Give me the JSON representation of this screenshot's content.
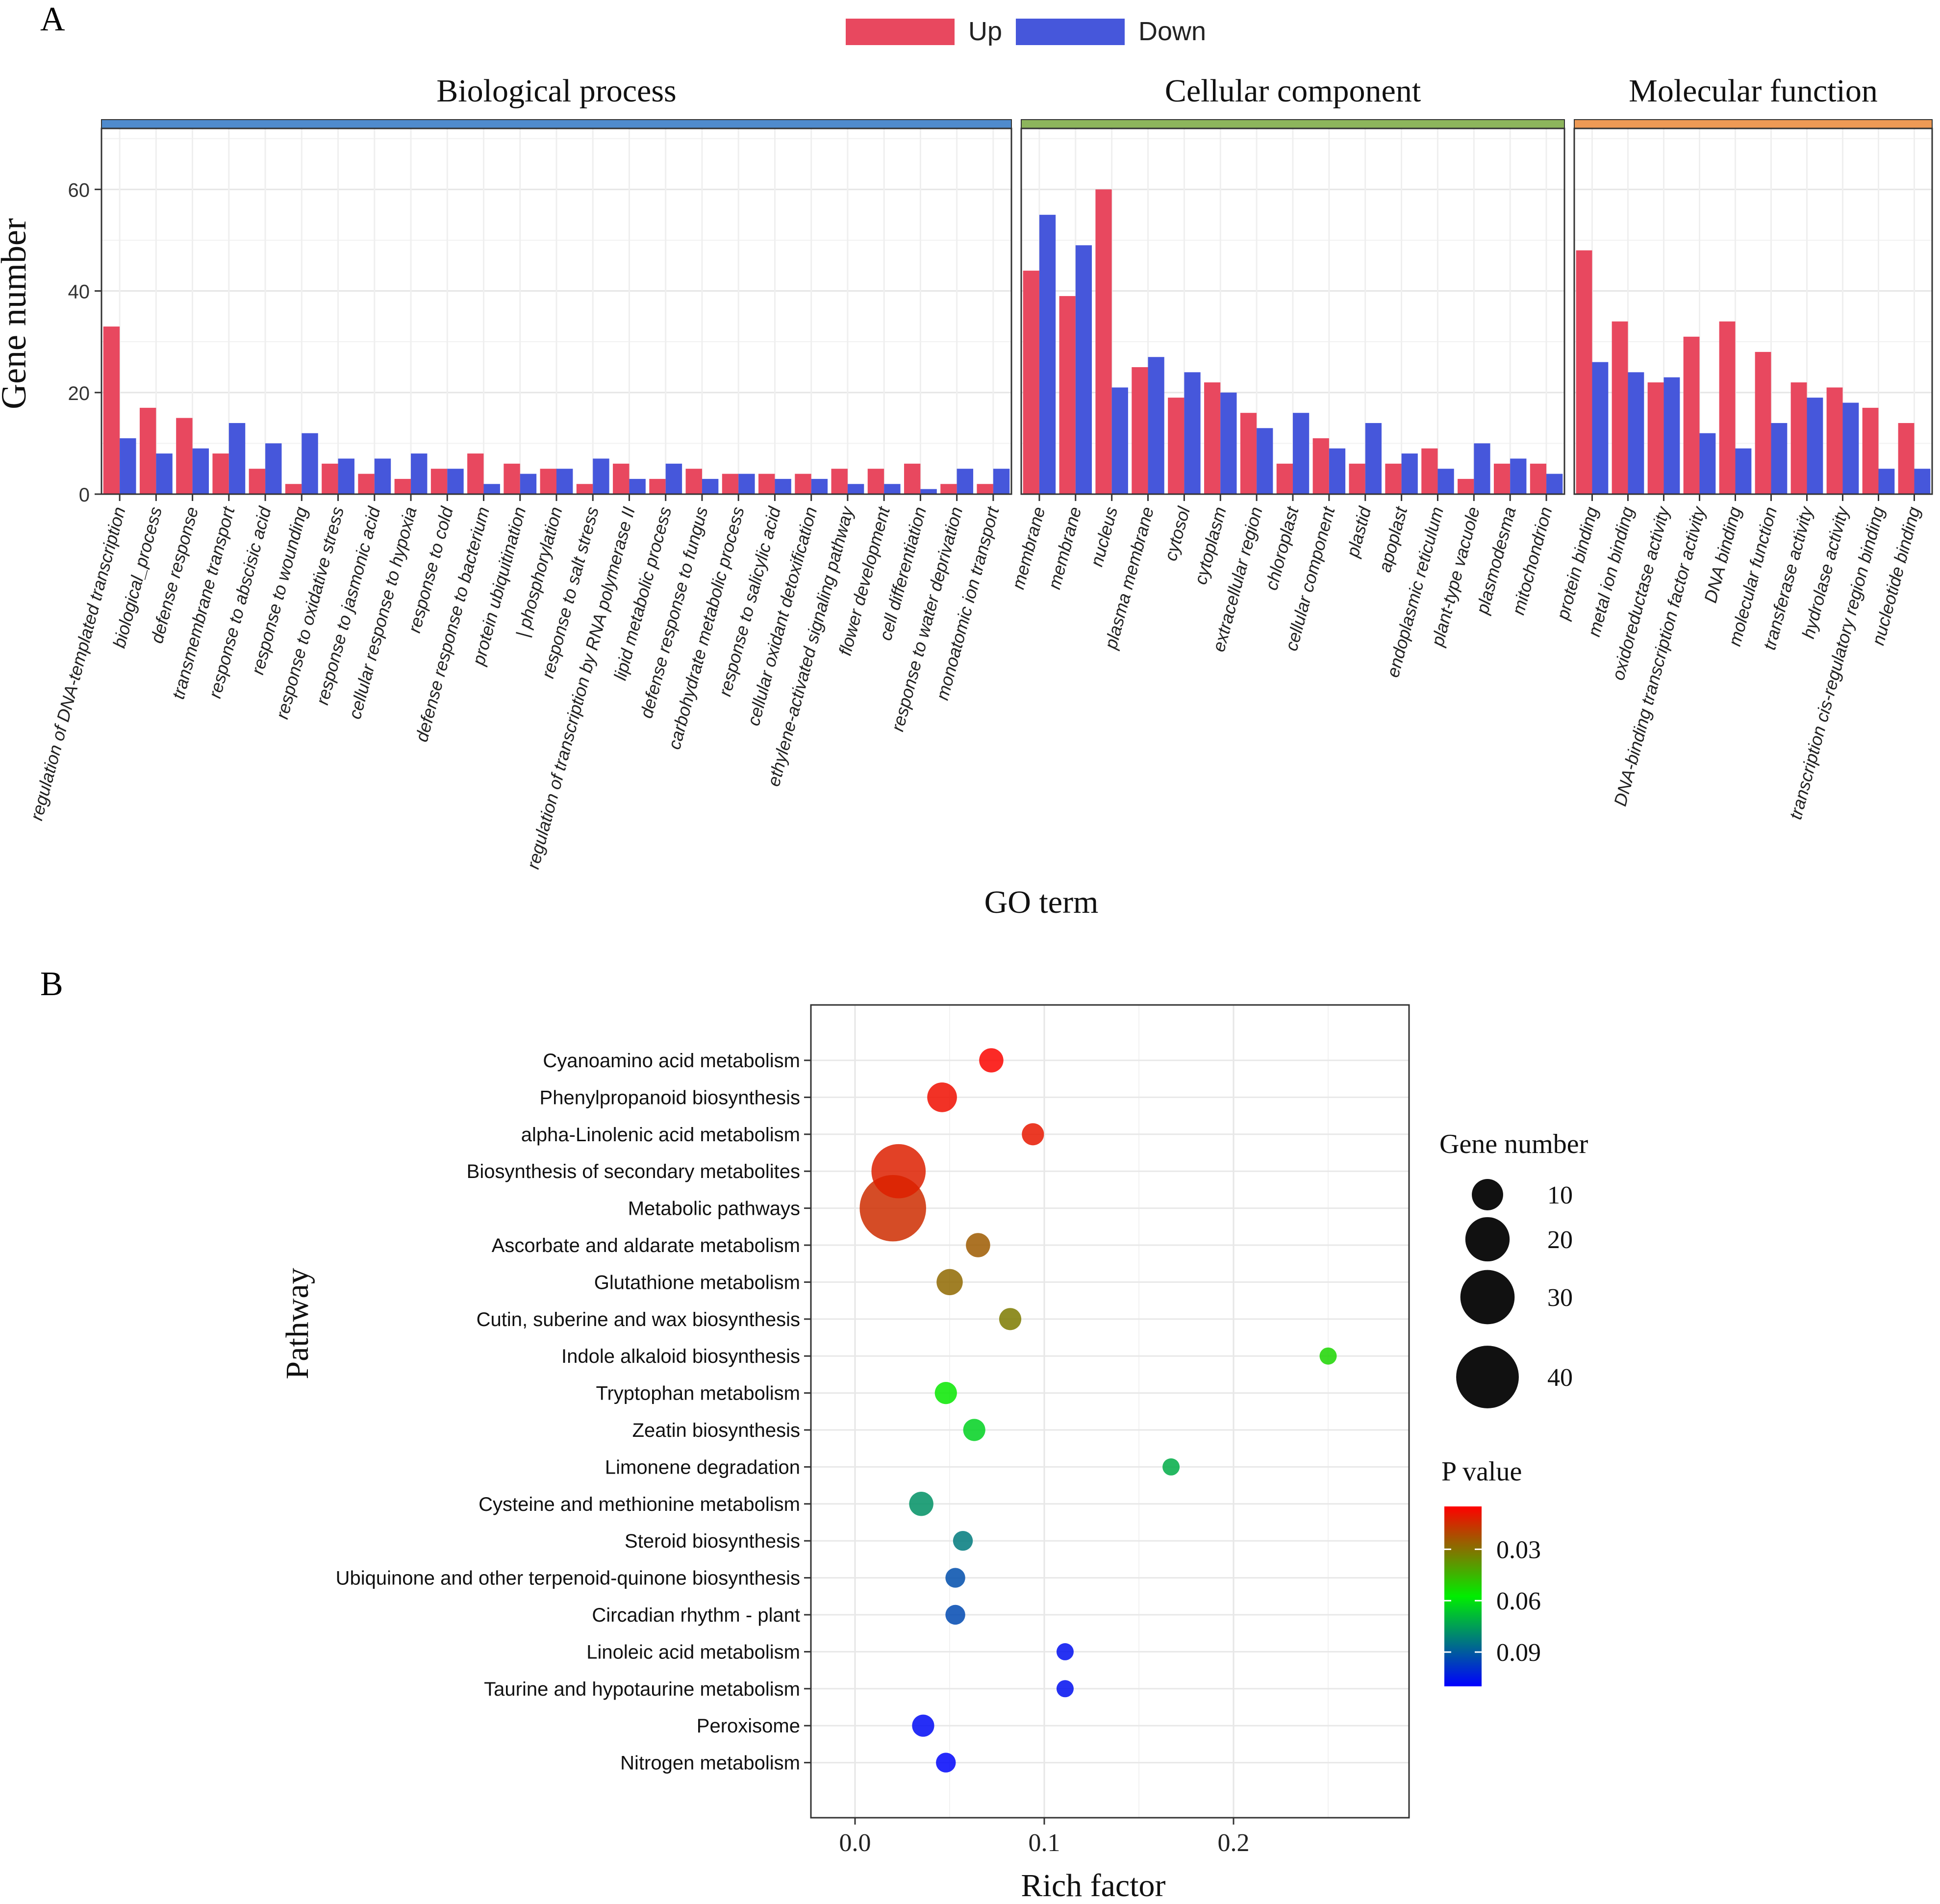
{
  "panel_labels": {
    "a": "A",
    "b": "B"
  },
  "chart_data": [
    {
      "type": "bar",
      "title": "",
      "xlabel": "GO term",
      "ylabel": "Gene number",
      "ylim": [
        0,
        72
      ],
      "yticks": [
        0,
        20,
        40,
        60
      ],
      "grid": true,
      "legend": [
        {
          "name": "Up",
          "color": "#E8485F"
        },
        {
          "name": "Down",
          "color": "#4657DB"
        }
      ],
      "legend_position": "top-center",
      "facets": [
        {
          "title": "Biological process",
          "strip_color": "#4F8BCD",
          "categories": [
            "regulation of DNA-templated transcription",
            "biological_process",
            "defense response",
            "transmembrane transport",
            "response to abscisic acid",
            "response to wounding",
            "response to oxidative stress",
            "response to jasmonic acid",
            "cellular response to hypoxia",
            "response to cold",
            "defense response to bacterium",
            "protein ubiquitination",
            "| phosphorylation",
            "response to salt stress",
            "regulation of transcription by RNA polymerase II",
            "lipid metabolic process",
            "defense response to fungus",
            "carbohydrate metabolic process",
            "response to salicylic acid",
            "cellular oxidant detoxification",
            "ethylene-activated signaling pathway",
            "flower development",
            "cell differentiation",
            "response to water deprivation",
            "monoatomic ion transport"
          ],
          "series": [
            {
              "name": "Up",
              "values": [
                33,
                17,
                15,
                8,
                5,
                2,
                6,
                4,
                3,
                5,
                8,
                6,
                5,
                2,
                6,
                3,
                5,
                4,
                4,
                4,
                5,
                5,
                6,
                2,
                2
              ]
            },
            {
              "name": "Down",
              "values": [
                11,
                8,
                9,
                14,
                10,
                12,
                7,
                7,
                8,
                5,
                2,
                4,
                5,
                7,
                3,
                6,
                3,
                4,
                3,
                3,
                2,
                2,
                1,
                5,
                5
              ]
            }
          ]
        },
        {
          "title": "Cellular component",
          "strip_color": "#8DB55C",
          "categories": [
            "membrane",
            "membrane",
            "nucleus",
            "plasma membrane",
            "cytosol",
            "cytoplasm",
            "extracellular region",
            "chloroplast",
            "cellular  component",
            "plastid",
            "apoplast",
            "endoplasmic reticulum",
            "plant-type vacuole",
            "plasmodesma",
            "mitochondrion"
          ],
          "series": [
            {
              "name": "Up",
              "values": [
                44,
                39,
                60,
                25,
                19,
                22,
                16,
                6,
                11,
                6,
                6,
                9,
                3,
                6,
                6
              ]
            },
            {
              "name": "Down",
              "values": [
                55,
                49,
                21,
                27,
                24,
                20,
                13,
                16,
                9,
                14,
                8,
                5,
                10,
                7,
                4
              ]
            }
          ]
        },
        {
          "title": "Molecular function",
          "strip_color": "#EE9A55",
          "categories": [
            "protein binding",
            "metal ion binding",
            "oxidoreductase activity",
            "DNA-binding transcription factor activity",
            "DNA binding",
            "molecular  function",
            "transferase activity",
            "hydrolase activity",
            "transcription cis-regulatory region binding",
            "nucleotide binding"
          ],
          "series": [
            {
              "name": "Up",
              "values": [
                48,
                34,
                22,
                31,
                34,
                28,
                22,
                21,
                17,
                14
              ]
            },
            {
              "name": "Down",
              "values": [
                26,
                24,
                23,
                12,
                9,
                14,
                19,
                18,
                5,
                5
              ]
            }
          ]
        }
      ]
    },
    {
      "type": "scatter",
      "title": "",
      "xlabel": "Rich factor",
      "ylabel": "Pathway",
      "xlim": [
        -0.025,
        0.3
      ],
      "xticks": [
        "0.0",
        "0.1",
        "0.2"
      ],
      "grid": true,
      "size_legend": {
        "title": "Gene number",
        "values": [
          10,
          20,
          30,
          40
        ]
      },
      "color_legend": {
        "title": "P value",
        "ticks": [
          "0.03",
          "0.06",
          "0.09"
        ],
        "range": [
          0.005,
          0.11
        ],
        "colors": [
          "#FF0000",
          "#00EE00",
          "#0000FF"
        ]
      },
      "points": [
        {
          "pathway": "Cyanoamino acid metabolism",
          "rich_factor": 0.072,
          "gene_number": 6,
          "p_value": 0.006
        },
        {
          "pathway": "Phenylpropanoid biosynthesis",
          "rich_factor": 0.046,
          "gene_number": 9,
          "p_value": 0.008
        },
        {
          "pathway": "alpha-Linolenic acid metabolism",
          "rich_factor": 0.094,
          "gene_number": 5,
          "p_value": 0.01
        },
        {
          "pathway": "Biosynthesis of secondary metabolites",
          "rich_factor": 0.023,
          "gene_number": 30,
          "p_value": 0.012
        },
        {
          "pathway": "Metabolic pathways",
          "rich_factor": 0.02,
          "gene_number": 45,
          "p_value": 0.015
        },
        {
          "pathway": "Ascorbate and aldarate metabolism",
          "rich_factor": 0.065,
          "gene_number": 6,
          "p_value": 0.025
        },
        {
          "pathway": "Glutathione metabolism",
          "rich_factor": 0.05,
          "gene_number": 7,
          "p_value": 0.028
        },
        {
          "pathway": "Cutin, suberine and wax biosynthesis",
          "rich_factor": 0.082,
          "gene_number": 5,
          "p_value": 0.032
        },
        {
          "pathway": "Indole alkaloid biosynthesis",
          "rich_factor": 0.25,
          "gene_number": 3,
          "p_value": 0.052
        },
        {
          "pathway": "Tryptophan metabolism",
          "rich_factor": 0.048,
          "gene_number": 5,
          "p_value": 0.056
        },
        {
          "pathway": "Zeatin biosynthesis",
          "rich_factor": 0.063,
          "gene_number": 5,
          "p_value": 0.064
        },
        {
          "pathway": "Limonene degradation",
          "rich_factor": 0.167,
          "gene_number": 3,
          "p_value": 0.072
        },
        {
          "pathway": "Cysteine and methionine metabolism",
          "rich_factor": 0.035,
          "gene_number": 6,
          "p_value": 0.078
        },
        {
          "pathway": "Steroid biosynthesis",
          "rich_factor": 0.057,
          "gene_number": 4,
          "p_value": 0.083
        },
        {
          "pathway": "Ubiquinone and other terpenoid-quinone biosynthesis",
          "rich_factor": 0.053,
          "gene_number": 4,
          "p_value": 0.093
        },
        {
          "pathway": "Circadian rhythm - plant",
          "rich_factor": 0.053,
          "gene_number": 4,
          "p_value": 0.094
        },
        {
          "pathway": "Linoleic acid metabolism",
          "rich_factor": 0.111,
          "gene_number": 3,
          "p_value": 0.107
        },
        {
          "pathway": "Taurine and hypotaurine metabolism",
          "rich_factor": 0.111,
          "gene_number": 3,
          "p_value": 0.107
        },
        {
          "pathway": "Peroxisome",
          "rich_factor": 0.036,
          "gene_number": 5,
          "p_value": 0.108
        },
        {
          "pathway": "Nitrogen metabolism",
          "rich_factor": 0.048,
          "gene_number": 4,
          "p_value": 0.109
        }
      ]
    }
  ]
}
